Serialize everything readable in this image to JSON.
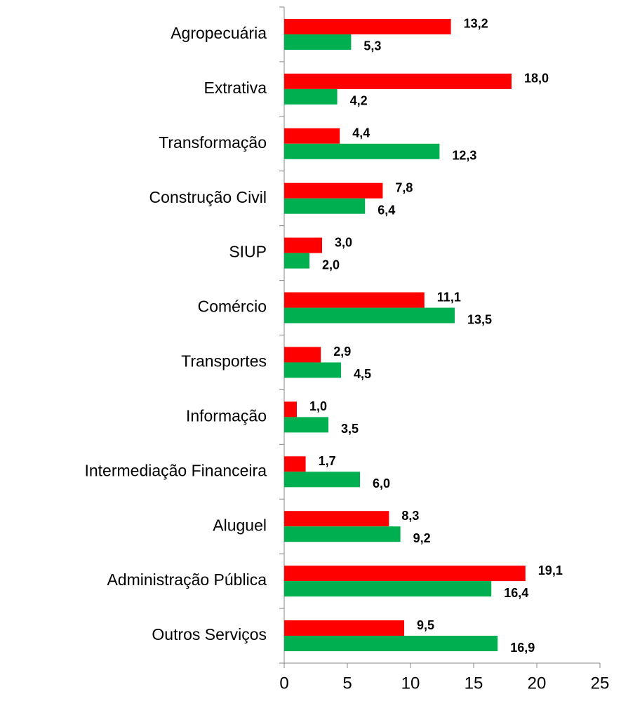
{
  "chart_data": {
    "type": "hbar",
    "categories": [
      "Agropecuária",
      "Extrativa",
      "Transformação",
      "Construção Civil",
      "SIUP",
      "Comércio",
      "Transportes",
      "Informação",
      "Intermediação Financeira",
      "Aluguel",
      "Administração Pública",
      "Outros Serviços"
    ],
    "series": [
      {
        "color": "#ff0000",
        "values": [
          13.2,
          18.0,
          4.4,
          7.8,
          3.0,
          11.1,
          2.9,
          1.0,
          1.7,
          8.3,
          19.1,
          9.5
        ],
        "value_labels": [
          "13,2",
          "18,0",
          "4,4",
          "7,8",
          "3,0",
          "11,1",
          "2,9",
          "1,0",
          "1,7",
          "8,3",
          "19,1",
          "9,5"
        ]
      },
      {
        "color": "#00b050",
        "values": [
          5.3,
          4.2,
          12.3,
          6.4,
          2.0,
          13.5,
          4.5,
          3.5,
          6.0,
          9.2,
          16.4,
          16.9
        ],
        "value_labels": [
          "5,3",
          "4,2",
          "12,3",
          "6,4",
          "2,0",
          "13,5",
          "4,5",
          "3,5",
          "6,0",
          "9,2",
          "16,4",
          "16,9"
        ]
      }
    ],
    "xlim": [
      0,
      25
    ],
    "xticks": [
      0,
      5,
      10,
      15,
      20,
      25
    ]
  }
}
